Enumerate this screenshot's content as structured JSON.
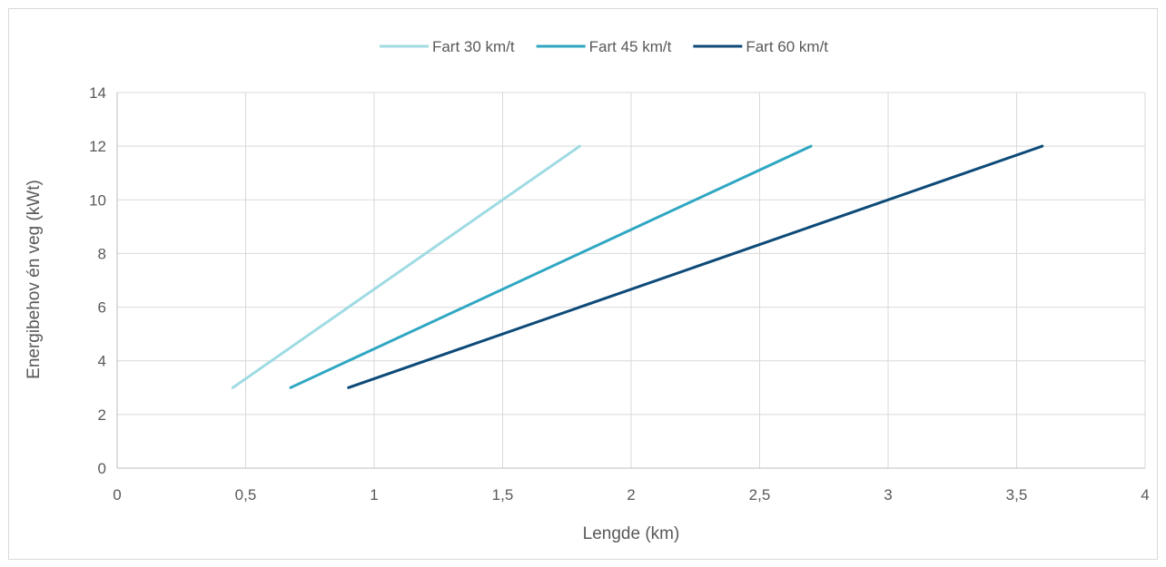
{
  "chart_data": {
    "type": "line",
    "title": "",
    "xlabel": "Lengde (km)",
    "ylabel": "Energibehov én veg (kWt)",
    "xlim": [
      0,
      4
    ],
    "ylim": [
      0,
      14
    ],
    "x_ticks": [
      "0",
      "0,5",
      "1",
      "1,5",
      "2",
      "2,5",
      "3",
      "3,5",
      "4"
    ],
    "y_ticks": [
      "0",
      "2",
      "4",
      "6",
      "8",
      "10",
      "12",
      "14"
    ],
    "grid": true,
    "legend_position": "top",
    "series": [
      {
        "name": "Fart 30 km/t",
        "color": "#9fdbe3",
        "x": [
          0.45,
          1.8
        ],
        "y": [
          3,
          12
        ]
      },
      {
        "name": "Fart 45 km/t",
        "color": "#2fa7c2",
        "x": [
          0.675,
          2.7
        ],
        "y": [
          3,
          12
        ]
      },
      {
        "name": "Fart 60 km/t",
        "color": "#0d4a78",
        "x": [
          0.9,
          3.6
        ],
        "y": [
          3,
          12
        ]
      }
    ]
  }
}
